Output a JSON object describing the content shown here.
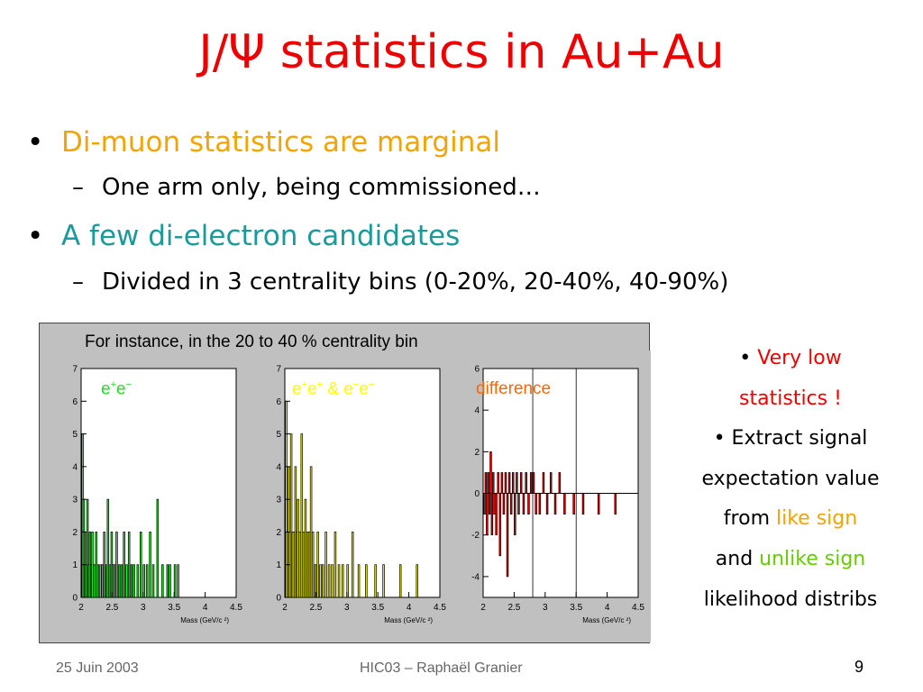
{
  "slide": {
    "title": "J/Ψ statistics in Au+Au",
    "bullets": [
      {
        "text": "Di-muon statistics are marginal",
        "color": "#f4a400",
        "sub": "One arm only, being commissioned…"
      },
      {
        "text": "A few di-electron candidates",
        "color": "#1a9a9a",
        "sub": "Divided in 3 centrality bins (0-20%, 20-40%, 40-90%)"
      }
    ],
    "bullet_symbol": "•",
    "dash_symbol": "–"
  },
  "figure": {
    "caption": "For instance, in the 20 to 40 % centrality bin",
    "panels": [
      {
        "label_html": "e<sup>+</sup>e<sup>−</sup>",
        "label": "e+e−",
        "color": "#22dd22"
      },
      {
        "label_html": "e<sup>+</sup>e<sup>+</sup> &amp; e<sup>−</sup>e<sup>−</sup>",
        "label": "e+e+ & e−e−",
        "color": "#ffff00"
      },
      {
        "label": "difference",
        "color": "#ff6600"
      }
    ],
    "xaxis_title": "Mass (GeV/c ²)"
  },
  "chart_data": [
    {
      "type": "bar",
      "title": "e+e−",
      "xlabel": "Mass (GeV/c ²)",
      "xlim": [
        2,
        4.5
      ],
      "ylim": [
        0,
        7
      ],
      "xticks": [
        "2",
        "2.5",
        "3",
        "3.5",
        "4",
        "4.5"
      ],
      "yticks": [
        "0",
        "1",
        "2",
        "3",
        "4",
        "5",
        "6",
        "7"
      ],
      "color": "#22ee22",
      "bars": [
        [
          2.01,
          5
        ],
        [
          2.03,
          3
        ],
        [
          2.05,
          1
        ],
        [
          2.07,
          2
        ],
        [
          2.09,
          3
        ],
        [
          2.11,
          1
        ],
        [
          2.13,
          2
        ],
        [
          2.15,
          1
        ],
        [
          2.17,
          2
        ],
        [
          2.2,
          1
        ],
        [
          2.23,
          2
        ],
        [
          2.26,
          1
        ],
        [
          2.3,
          1
        ],
        [
          2.33,
          1
        ],
        [
          2.36,
          2
        ],
        [
          2.4,
          1
        ],
        [
          2.42,
          3
        ],
        [
          2.45,
          1
        ],
        [
          2.48,
          2
        ],
        [
          2.5,
          1
        ],
        [
          2.53,
          1
        ],
        [
          2.56,
          2
        ],
        [
          2.6,
          1
        ],
        [
          2.64,
          1
        ],
        [
          2.68,
          2
        ],
        [
          2.72,
          1
        ],
        [
          2.76,
          2
        ],
        [
          2.8,
          1
        ],
        [
          2.84,
          1
        ],
        [
          2.9,
          1
        ],
        [
          2.95,
          2
        ],
        [
          3.0,
          1
        ],
        [
          3.05,
          1
        ],
        [
          3.1,
          2
        ],
        [
          3.15,
          1
        ],
        [
          3.22,
          3
        ],
        [
          3.3,
          1
        ],
        [
          3.38,
          1
        ],
        [
          3.42,
          1
        ],
        [
          3.5,
          1
        ],
        [
          3.55,
          1
        ]
      ]
    },
    {
      "type": "bar",
      "title": "e+e+ & e−e−",
      "xlabel": "Mass (GeV/c ²)",
      "xlim": [
        2,
        4.5
      ],
      "ylim": [
        0,
        7
      ],
      "xticks": [
        "2",
        "2.5",
        "3",
        "3.5",
        "4",
        "4.5"
      ],
      "yticks": [
        "0",
        "1",
        "2",
        "3",
        "4",
        "5",
        "6",
        "7"
      ],
      "color": "#eeee00",
      "bars": [
        [
          2.01,
          6
        ],
        [
          2.03,
          2
        ],
        [
          2.05,
          4
        ],
        [
          2.07,
          2
        ],
        [
          2.09,
          5
        ],
        [
          2.11,
          2
        ],
        [
          2.13,
          2
        ],
        [
          2.16,
          4
        ],
        [
          2.18,
          2
        ],
        [
          2.2,
          3
        ],
        [
          2.23,
          2
        ],
        [
          2.26,
          5
        ],
        [
          2.29,
          2
        ],
        [
          2.32,
          3
        ],
        [
          2.35,
          2
        ],
        [
          2.38,
          2
        ],
        [
          2.41,
          4
        ],
        [
          2.44,
          2
        ],
        [
          2.48,
          1
        ],
        [
          2.52,
          2
        ],
        [
          2.56,
          1
        ],
        [
          2.6,
          1
        ],
        [
          2.65,
          2
        ],
        [
          2.7,
          1
        ],
        [
          2.75,
          1
        ],
        [
          2.8,
          2
        ],
        [
          2.86,
          1
        ],
        [
          2.92,
          1
        ],
        [
          3.0,
          1
        ],
        [
          3.08,
          2
        ],
        [
          3.18,
          1
        ],
        [
          3.3,
          1
        ],
        [
          3.45,
          1
        ],
        [
          3.58,
          1
        ],
        [
          3.85,
          1
        ],
        [
          4.12,
          1
        ]
      ]
    },
    {
      "type": "bar",
      "title": "difference",
      "xlabel": "Mass (GeV/c ²)",
      "xlim": [
        2,
        4.5
      ],
      "ylim": [
        -5,
        6
      ],
      "xticks": [
        "2",
        "2.5",
        "3",
        "3.5",
        "4",
        "4.5"
      ],
      "yticks": [
        "-4",
        "-2",
        "0",
        "2",
        "4",
        "6"
      ],
      "color": "#ee0000",
      "bars": [
        [
          2.01,
          -1
        ],
        [
          2.03,
          1
        ],
        [
          2.05,
          -2
        ],
        [
          2.07,
          1
        ],
        [
          2.09,
          -1
        ],
        [
          2.11,
          2
        ],
        [
          2.13,
          -2
        ],
        [
          2.15,
          1
        ],
        [
          2.17,
          -1
        ],
        [
          2.2,
          -2
        ],
        [
          2.23,
          1
        ],
        [
          2.26,
          -3
        ],
        [
          2.29,
          1
        ],
        [
          2.32,
          -1
        ],
        [
          2.35,
          1
        ],
        [
          2.38,
          -4
        ],
        [
          2.41,
          1
        ],
        [
          2.44,
          -1
        ],
        [
          2.47,
          1
        ],
        [
          2.5,
          -2
        ],
        [
          2.53,
          1
        ],
        [
          2.56,
          -1
        ],
        [
          2.6,
          1
        ],
        [
          2.64,
          -1
        ],
        [
          2.68,
          1
        ],
        [
          2.72,
          -1
        ],
        [
          2.76,
          1
        ],
        [
          2.8,
          1
        ],
        [
          2.84,
          -1
        ],
        [
          2.9,
          -1
        ],
        [
          2.96,
          1
        ],
        [
          3.02,
          -1
        ],
        [
          3.08,
          1
        ],
        [
          3.15,
          -1
        ],
        [
          3.22,
          1
        ],
        [
          3.3,
          -1
        ],
        [
          3.45,
          -1
        ],
        [
          3.6,
          -1
        ],
        [
          3.85,
          -1
        ],
        [
          4.12,
          -1
        ]
      ]
    }
  ],
  "side_text": {
    "bullet": "•",
    "very_low": "Very low",
    "statistics": "statistics !",
    "extract": "Extract signal",
    "expectation": "expectation value",
    "from": "from",
    "like_sign": "like sign",
    "and": "and",
    "unlike_sign": "unlike sign",
    "likelihood": "likelihood distribs",
    "colors": {
      "red": "#ee0000",
      "orange": "#f4a400",
      "green": "#66cc00"
    }
  },
  "footer": {
    "date": "25 Juin 2003",
    "center": "HIC03 – Raphaël Granier",
    "page": "9"
  }
}
